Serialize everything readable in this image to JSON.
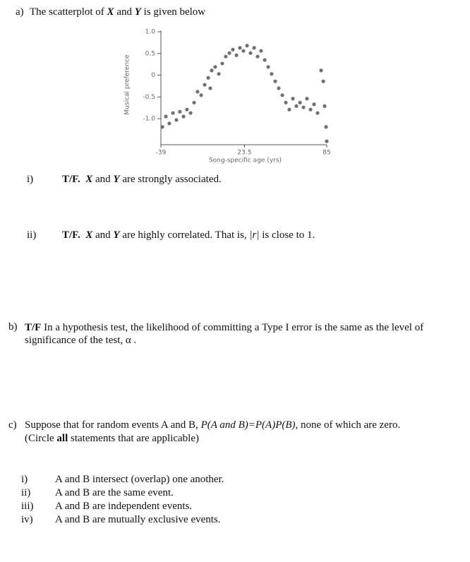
{
  "part_a": {
    "label": "a)",
    "text": [
      "The scatterplot of ",
      "X",
      " and ",
      "Y",
      " is given below"
    ],
    "items": [
      {
        "label": "i)",
        "tf": "T/F.",
        "text": [
          "X",
          " and ",
          "Y",
          " are strongly associated."
        ]
      },
      {
        "label": "ii)",
        "tf": "T/F.",
        "text": [
          "X",
          " and ",
          "Y",
          " are highly correlated. That is, ",
          "|r|",
          " is close to 1."
        ]
      }
    ]
  },
  "chart_data": {
    "type": "scatter",
    "x_label": "Song-specific age (yrs)",
    "y_label": "Musical preference",
    "color": "#707070",
    "xlim": [
      -39,
      85
    ],
    "xticks": [
      -39,
      23.5,
      85
    ],
    "ylim": [
      -1.6,
      1.0
    ],
    "yticks": [
      {
        "value": 1,
        "label": "1.0"
      },
      0.5,
      0,
      -0.5,
      {
        "value": -1,
        "label": "-1.0"
      }
    ],
    "x": [
      -37.9,
      -35.3,
      -32.7,
      -30.0,
      -27.4,
      -24.8,
      -22.1,
      -19.5,
      -16.8,
      -14.2,
      -11.6,
      -8.9,
      -6.3,
      -3.6,
      -2.1,
      -1.0,
      1.6,
      4.3,
      6.9,
      9.5,
      12.2,
      14.8,
      17.5,
      20.1,
      22.7,
      25.4,
      28.0,
      30.7,
      33.3,
      35.9,
      38.6,
      41.2,
      43.8,
      46.5,
      49.1,
      51.8,
      54.4,
      57.0,
      59.7,
      62.3,
      65.0,
      67.6,
      70.2,
      72.9,
      75.5,
      78.1,
      80.8,
      82.4,
      83.4,
      84.5,
      85.0
    ],
    "values": [
      -1.19,
      -0.95,
      -1.11,
      -0.87,
      -1.03,
      -0.84,
      -0.95,
      -0.79,
      -0.87,
      -0.63,
      -0.38,
      -0.46,
      -0.22,
      -0.06,
      -0.3,
      0.11,
      0.19,
      0.03,
      0.27,
      0.43,
      0.51,
      0.59,
      0.46,
      0.63,
      0.56,
      0.68,
      0.51,
      0.63,
      0.43,
      0.56,
      0.35,
      0.19,
      0.03,
      -0.14,
      -0.3,
      -0.46,
      -0.63,
      -0.79,
      -0.54,
      -0.71,
      -0.63,
      -0.74,
      -0.54,
      -0.79,
      -0.67,
      -0.87,
      0.11,
      -0.14,
      -0.71,
      -1.19,
      -1.52
    ]
  },
  "part_b": {
    "label": "b)",
    "tf": "T/F",
    "text": " In a hypothesis test, the likelihood of committing a Type I error is the same as the level of significance of the test, α ."
  },
  "part_c": {
    "label": "c)",
    "text": [
      "Suppose that for random events A and B, ",
      "P(A and B)=P(A)P(B)",
      ", none of which are zero."
    ],
    "note": [
      "(Circle ",
      "all",
      " statements that are applicable)"
    ],
    "options": [
      {
        "label": "i)",
        "text": "A and B intersect (overlap) one another."
      },
      {
        "label": "ii)",
        "text": "A and B are the same event."
      },
      {
        "label": "iii)",
        "text": "A and B are independent events."
      },
      {
        "label": "iv)",
        "text": "A and B are mutually exclusive events."
      }
    ]
  }
}
